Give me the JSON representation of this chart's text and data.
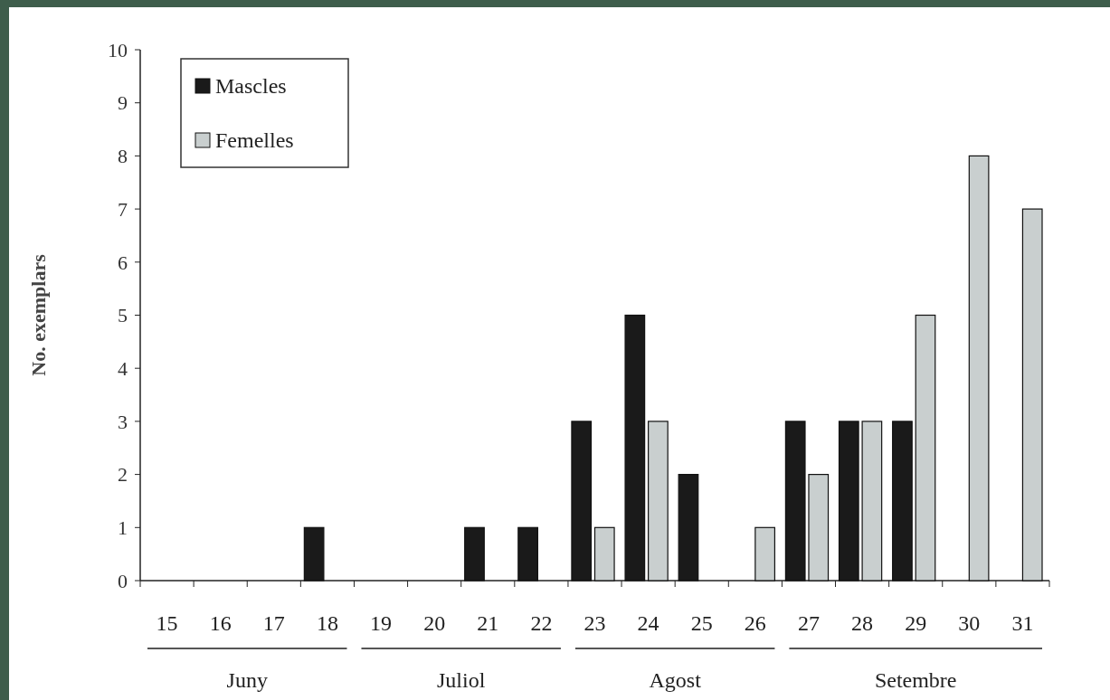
{
  "chart_data": {
    "type": "bar",
    "ylabel": "No. exemplars",
    "categories": [
      "15",
      "16",
      "17",
      "18",
      "19",
      "20",
      "21",
      "22",
      "23",
      "24",
      "25",
      "26",
      "27",
      "28",
      "29",
      "30",
      "31"
    ],
    "series": [
      {
        "name": "Mascles",
        "color": "#1a1a1a",
        "values": [
          0,
          0,
          0,
          1,
          0,
          0,
          1,
          1,
          3,
          5,
          2,
          0,
          3,
          3,
          3,
          0,
          0
        ]
      },
      {
        "name": "Femelles",
        "color": "#c9cfcf",
        "values": [
          0,
          0,
          0,
          0,
          0,
          0,
          0,
          0,
          1,
          3,
          0,
          1,
          2,
          3,
          5,
          8,
          7
        ]
      }
    ],
    "ylim": [
      0,
      10
    ],
    "yticks": [
      0,
      1,
      2,
      3,
      4,
      5,
      6,
      7,
      8,
      9,
      10
    ],
    "grid": false,
    "legend": "top left",
    "annotations": [
      "Juny",
      "Juliol",
      "Agost",
      "Setembre"
    ]
  }
}
